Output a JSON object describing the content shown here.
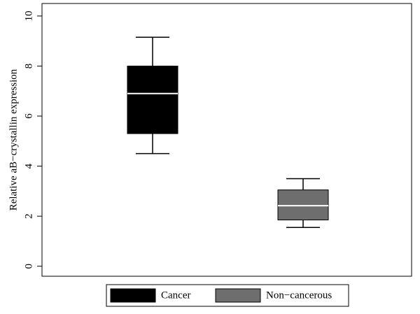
{
  "chart_data": {
    "type": "box",
    "y_label": "Relative aB−crystallin expression",
    "ylim": [
      -0.4,
      10.5
    ],
    "yticks": [
      0,
      2,
      4,
      6,
      8,
      10
    ],
    "series": [
      {
        "name": "Cancer",
        "color": "#000000",
        "whisker_low": 4.5,
        "q1": 5.3,
        "median": 6.9,
        "q3": 8.0,
        "whisker_high": 9.15
      },
      {
        "name": "Non−cancerous",
        "color": "#6e6e6e",
        "whisker_low": 1.55,
        "q1": 1.85,
        "median": 2.42,
        "q3": 3.05,
        "whisker_high": 3.5
      }
    ]
  }
}
